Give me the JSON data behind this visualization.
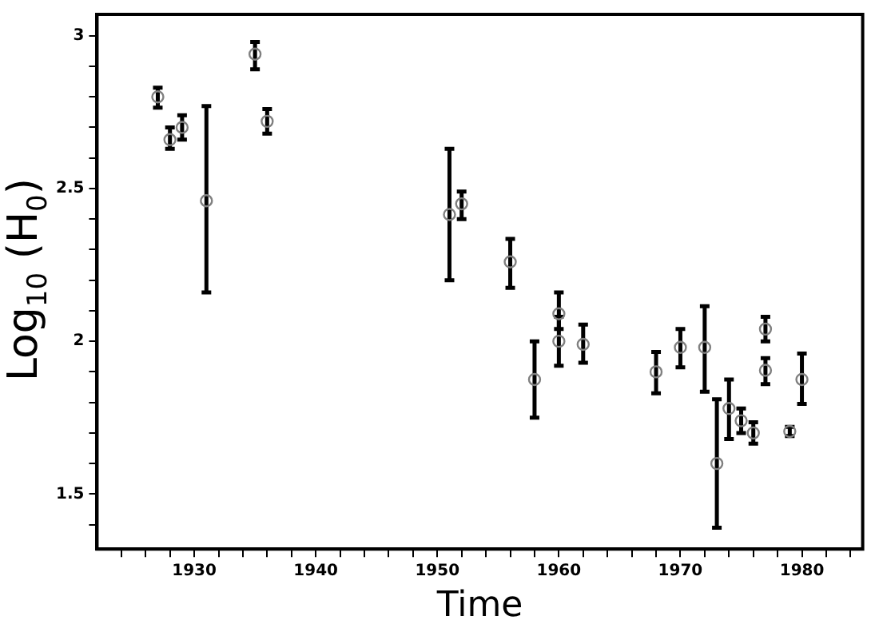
{
  "chart_data": {
    "type": "scatter",
    "xlabel": "Time",
    "ylabel": "Log$_{10}$ (H$_{0}$)",
    "marker": "circle",
    "grid": false,
    "xlim": [
      1922,
      1985
    ],
    "xticks": [
      {
        "value": 1924,
        "label": null
      },
      {
        "value": 1926,
        "label": null
      },
      {
        "value": 1928,
        "label": null
      },
      1930,
      {
        "value": 1932,
        "label": null
      },
      {
        "value": 1934,
        "label": null
      },
      {
        "value": 1936,
        "label": null
      },
      {
        "value": 1938,
        "label": null
      },
      1940,
      {
        "value": 1942,
        "label": null
      },
      {
        "value": 1944,
        "label": null
      },
      {
        "value": 1946,
        "label": null
      },
      {
        "value": 1948,
        "label": null
      },
      1950,
      {
        "value": 1952,
        "label": null
      },
      {
        "value": 1954,
        "label": null
      },
      {
        "value": 1956,
        "label": null
      },
      {
        "value": 1958,
        "label": null
      },
      1960,
      {
        "value": 1962,
        "label": null
      },
      {
        "value": 1964,
        "label": null
      },
      {
        "value": 1966,
        "label": null
      },
      {
        "value": 1968,
        "label": null
      },
      1970,
      {
        "value": 1972,
        "label": null
      },
      {
        "value": 1974,
        "label": null
      },
      {
        "value": 1976,
        "label": null
      },
      {
        "value": 1978,
        "label": null
      },
      1980,
      {
        "value": 1982,
        "label": null
      },
      {
        "value": 1984,
        "label": null
      }
    ],
    "ylim": [
      1.32,
      3.07
    ],
    "yticks": [
      {
        "value": 1.4,
        "label": null
      },
      1.5,
      {
        "value": 1.6,
        "label": null
      },
      {
        "value": 1.7,
        "label": null
      },
      {
        "value": 1.8,
        "label": null
      },
      {
        "value": 1.9,
        "label": null
      },
      2,
      {
        "value": 2.1,
        "label": null
      },
      {
        "value": 2.2,
        "label": null
      },
      {
        "value": 2.3,
        "label": null
      },
      {
        "value": 2.4,
        "label": null
      },
      2.5,
      {
        "value": 2.6,
        "label": null
      },
      {
        "value": 2.7,
        "label": null
      },
      {
        "value": 2.8,
        "label": null
      },
      {
        "value": 2.9,
        "label": null
      },
      3
    ],
    "series": [
      {
        "color": "#808080",
        "x": [
          1927,
          1928,
          1929,
          1931,
          1935,
          1936,
          1951,
          1952,
          1956,
          1958,
          1960,
          1960,
          1962,
          1968,
          1970,
          1972,
          1973,
          1974,
          1975,
          1976,
          1977,
          1977,
          1979,
          1980
        ],
        "values": [
          2.8,
          2.66,
          2.7,
          2.46,
          2.94,
          2.72,
          2.415,
          2.45,
          2.26,
          1.875,
          2.09,
          2.0,
          1.99,
          1.9,
          1.98,
          1.98,
          1.6,
          1.78,
          1.74,
          1.7,
          2.04,
          1.905,
          1.705,
          1.875
        ],
        "errors": [
          [
            2.765,
            2.83
          ],
          [
            2.63,
            2.7
          ],
          [
            2.66,
            2.74
          ],
          [
            2.16,
            2.77
          ],
          [
            2.89,
            2.98
          ],
          [
            2.68,
            2.76
          ],
          [
            2.2,
            2.63
          ],
          [
            2.4,
            2.49
          ],
          [
            2.175,
            2.335
          ],
          [
            1.75,
            2.0
          ],
          [
            2.04,
            2.16
          ],
          [
            1.92,
            2.08
          ],
          [
            1.93,
            2.055
          ],
          [
            1.83,
            1.965
          ],
          [
            1.915,
            2.04
          ],
          [
            1.835,
            2.115
          ],
          [
            1.39,
            1.81
          ],
          [
            1.68,
            1.875
          ],
          [
            1.7,
            1.78
          ],
          [
            1.665,
            1.735
          ],
          [
            2.0,
            2.08
          ],
          [
            1.86,
            1.945
          ],
          [
            1.69,
            1.72
          ],
          [
            1.795,
            1.96
          ]
        ]
      }
    ]
  }
}
